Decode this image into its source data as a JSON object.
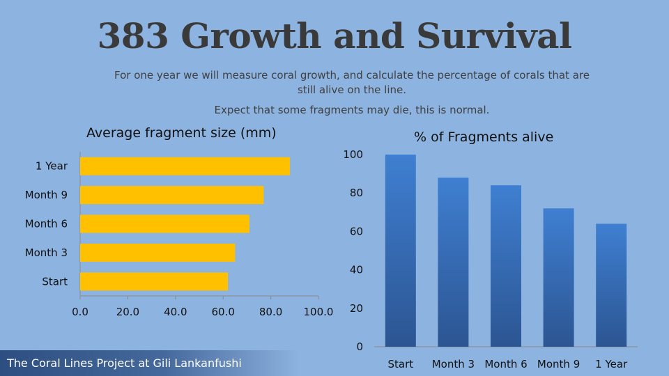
{
  "title": "383 Growth and Survival",
  "subtitle_1": "For one year we will measure coral growth, and calculate the percentage of corals that are still alive on the line.",
  "subtitle_2": "Expect that some fragments may die, this is normal.",
  "footer": "The Coral Lines Project at Gili Lankanfushi",
  "colors": {
    "bar": "#ffc000",
    "column_top": "#3f7fd1",
    "column_bottom": "#2c5592",
    "background": "#8db3e0"
  },
  "chart_data": [
    {
      "type": "bar",
      "orientation": "horizontal",
      "title": "Average fragment size (mm)",
      "categories": [
        "1 Year",
        "Month 9",
        "Month 6",
        "Month 3",
        "Start"
      ],
      "values": [
        88,
        77,
        71,
        65,
        62
      ],
      "xlim": [
        0,
        100
      ],
      "x_ticks": [
        "0.0",
        "20.0",
        "40.0",
        "60.0",
        "80.0",
        "100.0"
      ],
      "grid": false
    },
    {
      "type": "bar",
      "orientation": "vertical",
      "title": "% of Fragments alive",
      "categories": [
        "Start",
        "Month 3",
        "Month 6",
        "Month 9",
        "1 Year"
      ],
      "values": [
        100,
        88,
        84,
        72,
        64
      ],
      "ylim": [
        0,
        100
      ],
      "y_ticks": [
        "0",
        "20",
        "40",
        "60",
        "80",
        "100"
      ],
      "grid": false
    }
  ]
}
